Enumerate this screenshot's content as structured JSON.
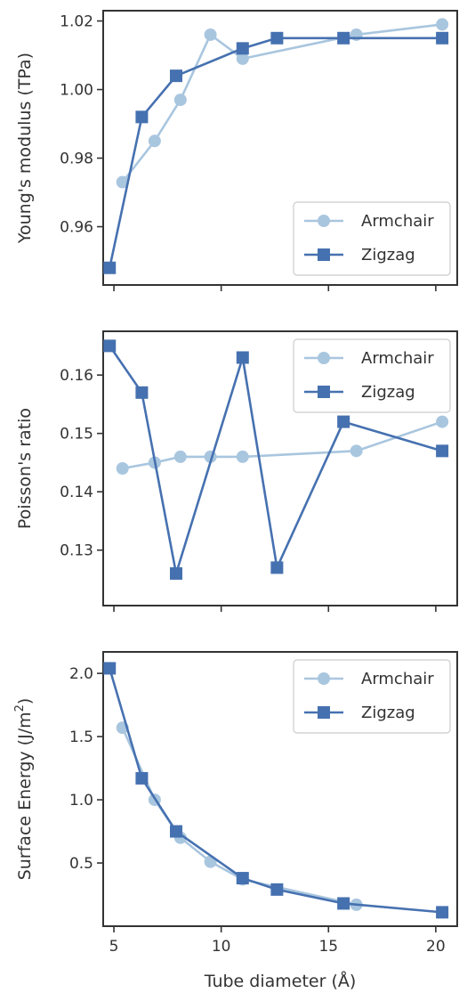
{
  "chart_data": [
    {
      "type": "line",
      "ylabel": "Young's modulus (TPa)",
      "xlim": [
        4.5,
        21.0
      ],
      "ylim": [
        0.943,
        1.023
      ],
      "yticks": [
        0.96,
        0.98,
        1.0,
        1.02
      ],
      "ytick_labels": [
        "0.96",
        "0.98",
        "1.00",
        "1.02"
      ],
      "xticks": [
        5,
        10,
        15,
        20
      ],
      "show_xtick_labels": false,
      "legend_position": "lower-right",
      "series": [
        {
          "name": "Armchair",
          "marker": "circle",
          "color": "#a9c6df",
          "x": [
            5.4,
            6.9,
            8.1,
            9.5,
            11.0,
            16.3,
            20.3
          ],
          "y": [
            0.973,
            0.985,
            0.997,
            1.016,
            1.009,
            1.016,
            1.019
          ]
        },
        {
          "name": "Zigzag",
          "marker": "square",
          "color": "#4671b0",
          "x": [
            4.8,
            6.3,
            7.9,
            11.0,
            12.6,
            15.7,
            20.3
          ],
          "y": [
            0.948,
            0.992,
            1.004,
            1.012,
            1.015,
            1.015,
            1.015
          ]
        }
      ]
    },
    {
      "type": "line",
      "ylabel": "Poisson's ratio",
      "xlim": [
        4.5,
        21.0
      ],
      "ylim": [
        0.1205,
        0.1675
      ],
      "yticks": [
        0.13,
        0.14,
        0.15,
        0.16
      ],
      "ytick_labels": [
        "0.13",
        "0.14",
        "0.15",
        "0.16"
      ],
      "xticks": [
        5,
        10,
        15,
        20
      ],
      "show_xtick_labels": false,
      "legend_position": "top-right",
      "series": [
        {
          "name": "Armchair",
          "marker": "circle",
          "color": "#a9c6df",
          "x": [
            5.4,
            6.9,
            8.1,
            9.5,
            11.0,
            16.3,
            20.3
          ],
          "y": [
            0.144,
            0.145,
            0.146,
            0.146,
            0.146,
            0.147,
            0.152
          ]
        },
        {
          "name": "Zigzag",
          "marker": "square",
          "color": "#4671b0",
          "x": [
            4.8,
            6.3,
            7.9,
            11.0,
            12.6,
            15.7,
            20.3
          ],
          "y": [
            0.165,
            0.157,
            0.126,
            0.163,
            0.127,
            0.152,
            0.147
          ]
        }
      ]
    },
    {
      "type": "line",
      "ylabel": "Surface Energy (J/m",
      "ylabel_sup": "2",
      "ylabel_end": ")",
      "xlabel": "Tube diameter (Å)",
      "xlim": [
        4.5,
        21.0
      ],
      "ylim": [
        0.0,
        2.17
      ],
      "yticks": [
        0.5,
        1.0,
        1.5,
        2.0
      ],
      "ytick_labels": [
        "0.5",
        "1.0",
        "1.5",
        "2.0"
      ],
      "xticks": [
        5,
        10,
        15,
        20
      ],
      "xtick_labels": [
        "5",
        "10",
        "15",
        "20"
      ],
      "show_xtick_labels": true,
      "legend_position": "top-right",
      "series": [
        {
          "name": "Armchair",
          "marker": "circle",
          "color": "#a9c6df",
          "x": [
            5.4,
            6.9,
            8.1,
            9.5,
            11.0,
            16.3
          ],
          "y": [
            1.57,
            1.0,
            0.7,
            0.51,
            0.37,
            0.17
          ]
        },
        {
          "name": "Zigzag",
          "marker": "square",
          "color": "#4671b0",
          "x": [
            4.8,
            6.3,
            7.9,
            11.0,
            12.6,
            15.7,
            20.3
          ],
          "y": [
            2.04,
            1.17,
            0.75,
            0.38,
            0.29,
            0.18,
            0.11
          ]
        }
      ]
    }
  ]
}
